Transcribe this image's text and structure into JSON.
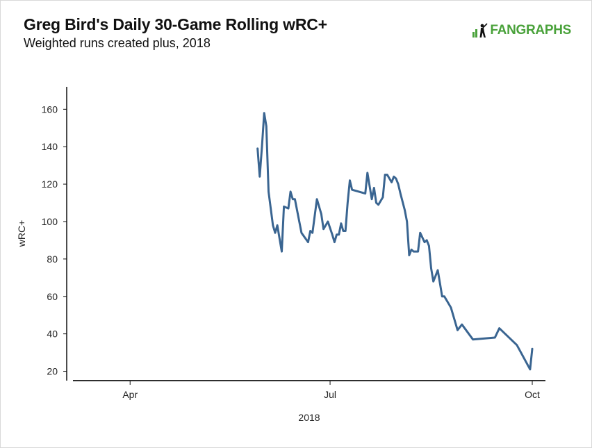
{
  "header": {
    "title": "Greg Bird's Daily 30-Game Rolling wRC+",
    "subtitle": "Weighted runs created plus, 2018"
  },
  "brand": {
    "wordmark": "FANGRAPHS",
    "color": "#4aa23b",
    "icon": "batter-logo-icon"
  },
  "colors": {
    "line": "#3a6591",
    "axis": "#111111"
  },
  "chart_data": {
    "type": "line",
    "title": "Greg Bird's Daily 30-Game Rolling wRC+",
    "subtitle": "Weighted runs created plus, 2018",
    "xlabel": "2018",
    "ylabel": "wRC+",
    "xlim": [
      "2018-03-06",
      "2018-10-07"
    ],
    "ylim": [
      15,
      172
    ],
    "x_ticks": [
      {
        "date": "2018-04-01",
        "label": "Apr"
      },
      {
        "date": "2018-07-01",
        "label": "Jul"
      },
      {
        "date": "2018-10-01",
        "label": "Oct"
      }
    ],
    "y_ticks": [
      20,
      40,
      60,
      80,
      100,
      120,
      140,
      160
    ],
    "grid": false,
    "legend": "none",
    "series": [
      {
        "color": "#3a6591",
        "points": [
          [
            "2018-05-29",
            139
          ],
          [
            "2018-05-30",
            124
          ],
          [
            "2018-05-31",
            140
          ],
          [
            "2018-06-01",
            158
          ],
          [
            "2018-06-02",
            151
          ],
          [
            "2018-06-03",
            116
          ],
          [
            "2018-06-05",
            98
          ],
          [
            "2018-06-06",
            94
          ],
          [
            "2018-06-07",
            98
          ],
          [
            "2018-06-09",
            84
          ],
          [
            "2018-06-10",
            108
          ],
          [
            "2018-06-12",
            107
          ],
          [
            "2018-06-13",
            116
          ],
          [
            "2018-06-14",
            112
          ],
          [
            "2018-06-15",
            112
          ],
          [
            "2018-06-18",
            94
          ],
          [
            "2018-06-21",
            89
          ],
          [
            "2018-06-22",
            95
          ],
          [
            "2018-06-23",
            94
          ],
          [
            "2018-06-25",
            112
          ],
          [
            "2018-06-27",
            104
          ],
          [
            "2018-06-28",
            96
          ],
          [
            "2018-06-30",
            100
          ],
          [
            "2018-07-02",
            93
          ],
          [
            "2018-07-03",
            89
          ],
          [
            "2018-07-04",
            93
          ],
          [
            "2018-07-05",
            93
          ],
          [
            "2018-07-06",
            99
          ],
          [
            "2018-07-07",
            95
          ],
          [
            "2018-07-08",
            95
          ],
          [
            "2018-07-09",
            110
          ],
          [
            "2018-07-10",
            122
          ],
          [
            "2018-07-11",
            117
          ],
          [
            "2018-07-17",
            115
          ],
          [
            "2018-07-18",
            126
          ],
          [
            "2018-07-20",
            112
          ],
          [
            "2018-07-21",
            118
          ],
          [
            "2018-07-22",
            110
          ],
          [
            "2018-07-23",
            109
          ],
          [
            "2018-07-25",
            113
          ],
          [
            "2018-07-26",
            125
          ],
          [
            "2018-07-27",
            125
          ],
          [
            "2018-07-29",
            121
          ],
          [
            "2018-07-30",
            124
          ],
          [
            "2018-07-31",
            123
          ],
          [
            "2018-08-01",
            120
          ],
          [
            "2018-08-02",
            115
          ],
          [
            "2018-08-04",
            106
          ],
          [
            "2018-08-05",
            100
          ],
          [
            "2018-08-06",
            82
          ],
          [
            "2018-08-07",
            85
          ],
          [
            "2018-08-08",
            84
          ],
          [
            "2018-08-09",
            84
          ],
          [
            "2018-08-10",
            84
          ],
          [
            "2018-08-11",
            94
          ],
          [
            "2018-08-13",
            89
          ],
          [
            "2018-08-14",
            90
          ],
          [
            "2018-08-15",
            87
          ],
          [
            "2018-08-16",
            75
          ],
          [
            "2018-08-17",
            68
          ],
          [
            "2018-08-18",
            71
          ],
          [
            "2018-08-19",
            74
          ],
          [
            "2018-08-20",
            67
          ],
          [
            "2018-08-21",
            60
          ],
          [
            "2018-08-22",
            60
          ],
          [
            "2018-08-25",
            54
          ],
          [
            "2018-08-28",
            42
          ],
          [
            "2018-08-30",
            45
          ],
          [
            "2018-09-04",
            37
          ],
          [
            "2018-09-14",
            38
          ],
          [
            "2018-09-16",
            43
          ],
          [
            "2018-09-24",
            34
          ],
          [
            "2018-09-30",
            21
          ],
          [
            "2018-10-01",
            32
          ]
        ]
      }
    ]
  }
}
